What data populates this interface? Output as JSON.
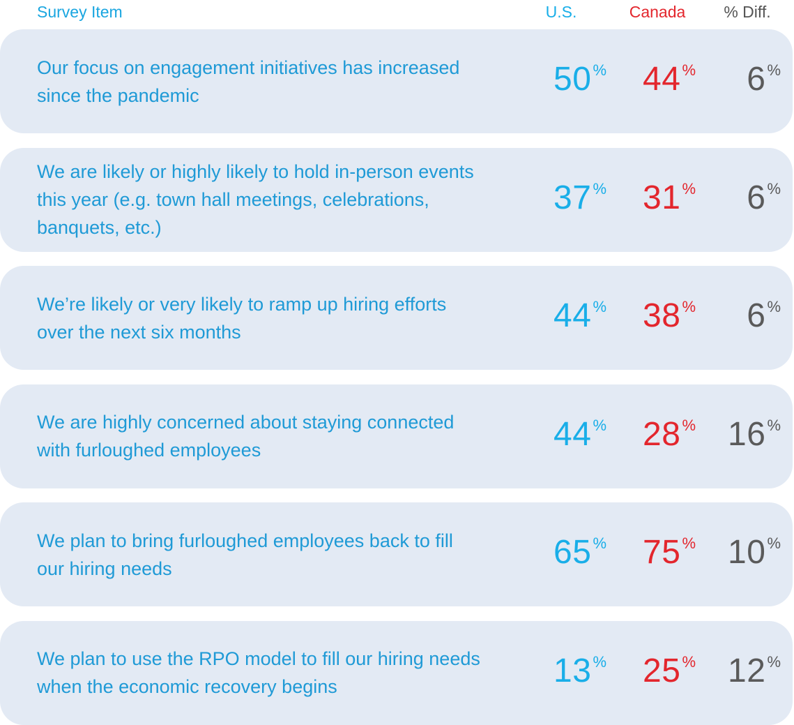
{
  "chart_data": {
    "type": "table",
    "columns": [
      "Survey Item",
      "U.S.",
      "Canada",
      "% Diff."
    ],
    "rows": [
      {
        "item": "Our focus on engagement initiatives has increased since the pandemic",
        "us": "50",
        "canada": "44",
        "diff": "6"
      },
      {
        "item": "We are likely or highly likely to hold in-person events this year (e.g. town hall meetings, celebrations, banquets, etc.)",
        "us": "37",
        "canada": "31",
        "diff": "6"
      },
      {
        "item": "We’re likely or very likely to ramp up hiring efforts over the next six months",
        "us": "44",
        "canada": "38",
        "diff": "6"
      },
      {
        "item": "We are highly concerned about staying connected with furloughed employees",
        "us": "44",
        "canada": "28",
        "diff": "16"
      },
      {
        "item": "We plan to bring furloughed employees back to fill our hiring needs",
        "us": "65",
        "canada": "75",
        "diff": "10"
      },
      {
        "item": "We plan to use the RPO model to fill our hiring needs when the economic recovery begins",
        "us": "13",
        "canada": "25",
        "diff": "12"
      }
    ],
    "unit": "%"
  },
  "colors": {
    "us": "#19aee8",
    "canada": "#e3262d",
    "diff": "#5a5a5a",
    "row_background": "#e3eaf4",
    "item_text": "#1f9ad6"
  }
}
